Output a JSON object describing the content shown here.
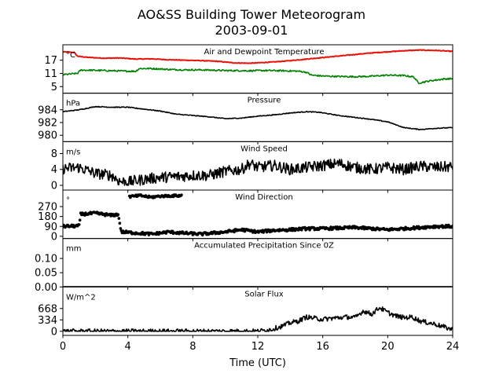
{
  "chart_data": {
    "type": "line",
    "title": "AO&SS Building Tower Meteorogram",
    "subtitle": "2003-09-01",
    "xlabel": "Time (UTC)",
    "xlim": [
      0,
      24
    ],
    "x_ticks": [
      "0",
      "4",
      "8",
      "12",
      "16",
      "20",
      "24"
    ],
    "panels": [
      {
        "title": "Air and Dewpoint Temperature",
        "unit": "°C",
        "ylim": [
          2,
          24
        ],
        "y_ticks": [
          {
            "v": 5,
            "label": "5"
          },
          {
            "v": 11,
            "label": "11"
          },
          {
            "v": 17,
            "label": "17"
          }
        ],
        "series": [
          {
            "color": "#e8140c",
            "style": "line",
            "width": 2,
            "jitter": 0.15,
            "points": [
              [
                0,
                20.8
              ],
              [
                0.7,
                20.5
              ],
              [
                0.9,
                18.8
              ],
              [
                1.5,
                18.3
              ],
              [
                2.5,
                17.9
              ],
              [
                3.5,
                18.0
              ],
              [
                4.5,
                17.5
              ],
              [
                5.5,
                17.6
              ],
              [
                6.5,
                17.2
              ],
              [
                7.5,
                17.0
              ],
              [
                8.5,
                16.8
              ],
              [
                9.5,
                16.5
              ],
              [
                10.5,
                15.8
              ],
              [
                11.5,
                15.6
              ],
              [
                12.5,
                16.0
              ],
              [
                13,
                16.2
              ],
              [
                14,
                16.8
              ],
              [
                15,
                17.5
              ],
              [
                16,
                18.2
              ],
              [
                17,
                18.9
              ],
              [
                18,
                19.6
              ],
              [
                19,
                20.3
              ],
              [
                20,
                20.8
              ],
              [
                21,
                21.3
              ],
              [
                22,
                21.6
              ],
              [
                23,
                21.4
              ],
              [
                24,
                21.0
              ]
            ]
          },
          {
            "color": "#008000",
            "style": "line",
            "width": 1.6,
            "jitter": 0.35,
            "points": [
              [
                0,
                10.4
              ],
              [
                0.9,
                11.0
              ],
              [
                1.1,
                12.5
              ],
              [
                2,
                12.4
              ],
              [
                3,
                12.2
              ],
              [
                4,
                12.0
              ],
              [
                4.5,
                12.0
              ],
              [
                4.7,
                13.2
              ],
              [
                5.5,
                13.2
              ],
              [
                6.5,
                12.8
              ],
              [
                7.5,
                12.6
              ],
              [
                8.5,
                12.6
              ],
              [
                10,
                12.3
              ],
              [
                11.5,
                12.2
              ],
              [
                12.5,
                12.3
              ],
              [
                13.5,
                12.2
              ],
              [
                14.5,
                12.0
              ],
              [
                15,
                11.5
              ],
              [
                15.3,
                10.2
              ],
              [
                16,
                9.8
              ],
              [
                17,
                9.6
              ],
              [
                18,
                9.5
              ],
              [
                19,
                9.7
              ],
              [
                20,
                10.2
              ],
              [
                21,
                10.0
              ],
              [
                21.6,
                9.4
              ],
              [
                21.9,
                6.6
              ],
              [
                22.5,
                7.5
              ],
              [
                23.5,
                8.5
              ],
              [
                24,
                8.6
              ]
            ]
          }
        ]
      },
      {
        "title": "Pressure",
        "unit": "hPa",
        "ylim": [
          979,
          986.6
        ],
        "y_ticks": [
          {
            "v": 980,
            "label": "980"
          },
          {
            "v": 982,
            "label": "982"
          },
          {
            "v": 984,
            "label": "984"
          }
        ],
        "series": [
          {
            "color": "#000000",
            "style": "line",
            "width": 1.6,
            "jitter": 0.06,
            "points": [
              [
                0,
                983.7
              ],
              [
                1,
                984.0
              ],
              [
                2,
                984.5
              ],
              [
                3,
                984.4
              ],
              [
                4,
                984.4
              ],
              [
                5,
                984.1
              ],
              [
                6,
                983.8
              ],
              [
                7,
                983.3
              ],
              [
                8,
                983.1
              ],
              [
                9,
                982.9
              ],
              [
                10,
                982.6
              ],
              [
                11,
                982.7
              ],
              [
                12,
                983.0
              ],
              [
                13,
                983.2
              ],
              [
                14,
                983.5
              ],
              [
                15,
                983.7
              ],
              [
                15.8,
                983.6
              ],
              [
                17,
                983.1
              ],
              [
                18,
                982.8
              ],
              [
                19,
                982.5
              ],
              [
                20,
                982.1
              ],
              [
                21,
                981.2
              ],
              [
                22,
                980.9
              ],
              [
                23,
                981.1
              ],
              [
                24,
                981.2
              ]
            ]
          }
        ]
      },
      {
        "title": "Wind Speed",
        "unit": "m/s",
        "ylim": [
          -1.2,
          11
        ],
        "y_ticks": [
          {
            "v": 0,
            "label": "0"
          },
          {
            "v": 4,
            "label": "4"
          },
          {
            "v": 8,
            "label": "8"
          }
        ],
        "series": [
          {
            "color": "#000000",
            "style": "line",
            "width": 1.6,
            "jitter": 1.4,
            "clip0": true,
            "points": [
              [
                0,
                4.2
              ],
              [
                1,
                4.5
              ],
              [
                2,
                3.0
              ],
              [
                3,
                2.5
              ],
              [
                3.5,
                1.0
              ],
              [
                4,
                0.8
              ],
              [
                5,
                1.5
              ],
              [
                6,
                2.0
              ],
              [
                7,
                2.2
              ],
              [
                8,
                2.5
              ],
              [
                9,
                2.5
              ],
              [
                10,
                3.5
              ],
              [
                11,
                4.0
              ],
              [
                11.5,
                5.5
              ],
              [
                12,
                4.5
              ],
              [
                13,
                5.0
              ],
              [
                14,
                4.0
              ],
              [
                15,
                4.5
              ],
              [
                16,
                5.0
              ],
              [
                17,
                5.5
              ],
              [
                18,
                4.5
              ],
              [
                19,
                4.0
              ],
              [
                20,
                4.5
              ],
              [
                21,
                4.0
              ],
              [
                22,
                4.8
              ],
              [
                23,
                4.5
              ],
              [
                24,
                4.7
              ]
            ]
          }
        ]
      },
      {
        "title": "Wind Direction",
        "unit": "°",
        "ylim": [
          -20,
          420
        ],
        "y_ticks": [
          {
            "v": 0,
            "label": "0"
          },
          {
            "v": 90,
            "label": "90"
          },
          {
            "v": 180,
            "label": "180"
          },
          {
            "v": 270,
            "label": "270"
          }
        ],
        "series": [
          {
            "color": "#000000",
            "style": "dots",
            "width": 3,
            "jitter": 12,
            "points": [
              [
                0,
                90
              ],
              [
                1,
                95
              ],
              [
                1.1,
                200
              ],
              [
                2,
                210
              ],
              [
                3,
                190
              ],
              [
                3.4,
                200
              ],
              [
                3.6,
                40
              ],
              [
                4.5,
                30
              ],
              [
                5.5,
                20
              ],
              [
                6.5,
                40
              ],
              [
                7.3,
                30
              ],
              [
                8.5,
                20
              ],
              [
                10,
                40
              ],
              [
                11,
                60
              ],
              [
                12,
                40
              ],
              [
                13,
                55
              ],
              [
                14,
                60
              ],
              [
                15,
                70
              ],
              [
                16,
                70
              ],
              [
                17,
                75
              ],
              [
                18,
                80
              ],
              [
                19,
                70
              ],
              [
                20,
                60
              ],
              [
                21,
                70
              ],
              [
                22,
                80
              ],
              [
                23,
                90
              ],
              [
                24,
                90
              ]
            ]
          },
          {
            "color": "#000000",
            "style": "dots",
            "width": 3,
            "jitter": 10,
            "points": [
              [
                4.1,
                360
              ],
              [
                4.8,
                370
              ],
              [
                5.4,
                355
              ],
              [
                6.0,
                365
              ],
              [
                7.3,
                370
              ]
            ]
          }
        ]
      },
      {
        "title": "Accumulated Precipitation Since 0Z",
        "unit": "mm",
        "ylim": [
          0,
          0.17
        ],
        "y_ticks": [
          {
            "v": 0,
            "label": "0.00"
          },
          {
            "v": 0.05,
            "label": "0.05"
          },
          {
            "v": 0.1,
            "label": "0.10"
          }
        ],
        "series": [
          {
            "color": "#000000",
            "style": "line",
            "width": 2,
            "jitter": 0,
            "points": [
              [
                0,
                0
              ],
              [
                24,
                0
              ]
            ]
          }
        ]
      },
      {
        "title": "Solar Flux",
        "unit": "W/m^2",
        "ylim": [
          -120,
          1300
        ],
        "y_ticks": [
          {
            "v": 0,
            "label": "0"
          },
          {
            "v": 334,
            "label": "334"
          },
          {
            "v": 668,
            "label": "668"
          }
        ],
        "series": [
          {
            "color": "#000000",
            "style": "line",
            "width": 1.6,
            "jitter": 70,
            "clip0": true,
            "points": [
              [
                0,
                0
              ],
              [
                11.5,
                0
              ],
              [
                12,
                0
              ],
              [
                12.8,
                50
              ],
              [
                13.5,
                150
              ],
              [
                14,
                250
              ],
              [
                14.5,
                300
              ],
              [
                15,
                420
              ],
              [
                15.5,
                380
              ],
              [
                16,
                350
              ],
              [
                16.5,
                380
              ],
              [
                17,
                400
              ],
              [
                17.5,
                420
              ],
              [
                18,
                400
              ],
              [
                18.5,
                600
              ],
              [
                19,
                500
              ],
              [
                19.5,
                700
              ],
              [
                20,
                550
              ],
              [
                20.5,
                450
              ],
              [
                21,
                400
              ],
              [
                21.5,
                420
              ],
              [
                22,
                300
              ],
              [
                22.5,
                250
              ],
              [
                23,
                200
              ],
              [
                23.5,
                120
              ],
              [
                24,
                50
              ]
            ]
          }
        ]
      }
    ]
  }
}
